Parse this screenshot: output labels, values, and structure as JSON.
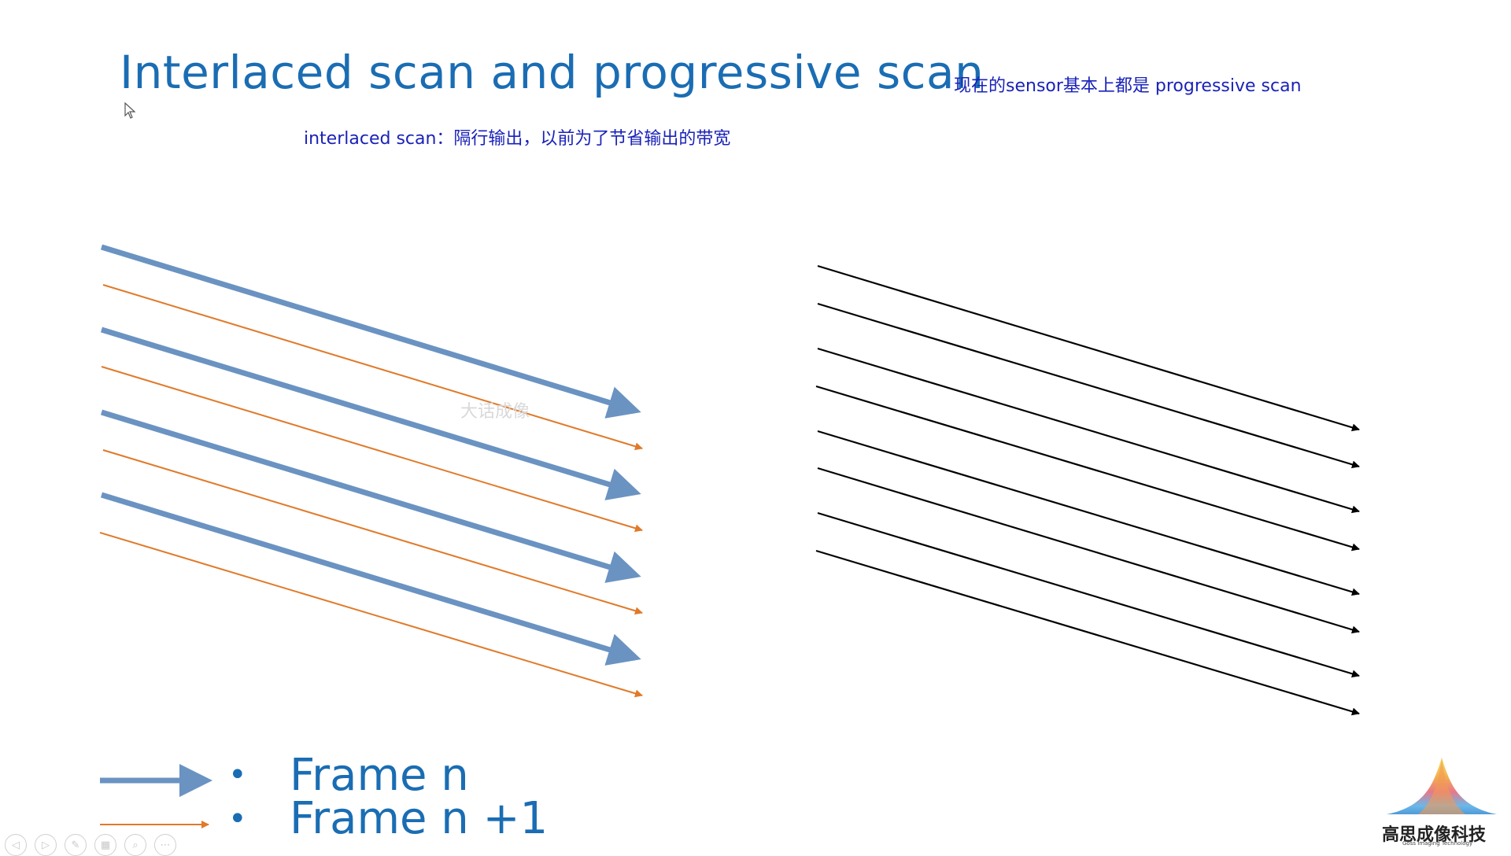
{
  "title": "Interlaced scan and progressive scan",
  "note_progressive": "现在的sensor基本上都是 progressive scan",
  "note_interlaced": "interlaced scan：隔行输出，以前为了节省输出的带宽",
  "watermark": "大话成像",
  "legend": {
    "bullet": "•",
    "frame_n": "Frame n",
    "frame_n1": "Frame n +1"
  },
  "colors": {
    "frame_n": "#6a93c2",
    "frame_n1": "#e07a2a",
    "progressive": "#000000",
    "title": "#1a6db3"
  },
  "logo": {
    "name": "高思成像科技",
    "subtitle": "Goss Imaging Technology"
  },
  "controls": [
    "prev-icon",
    "play-icon",
    "pen-icon",
    "grid-icon",
    "zoom-icon",
    "more-icon"
  ]
}
